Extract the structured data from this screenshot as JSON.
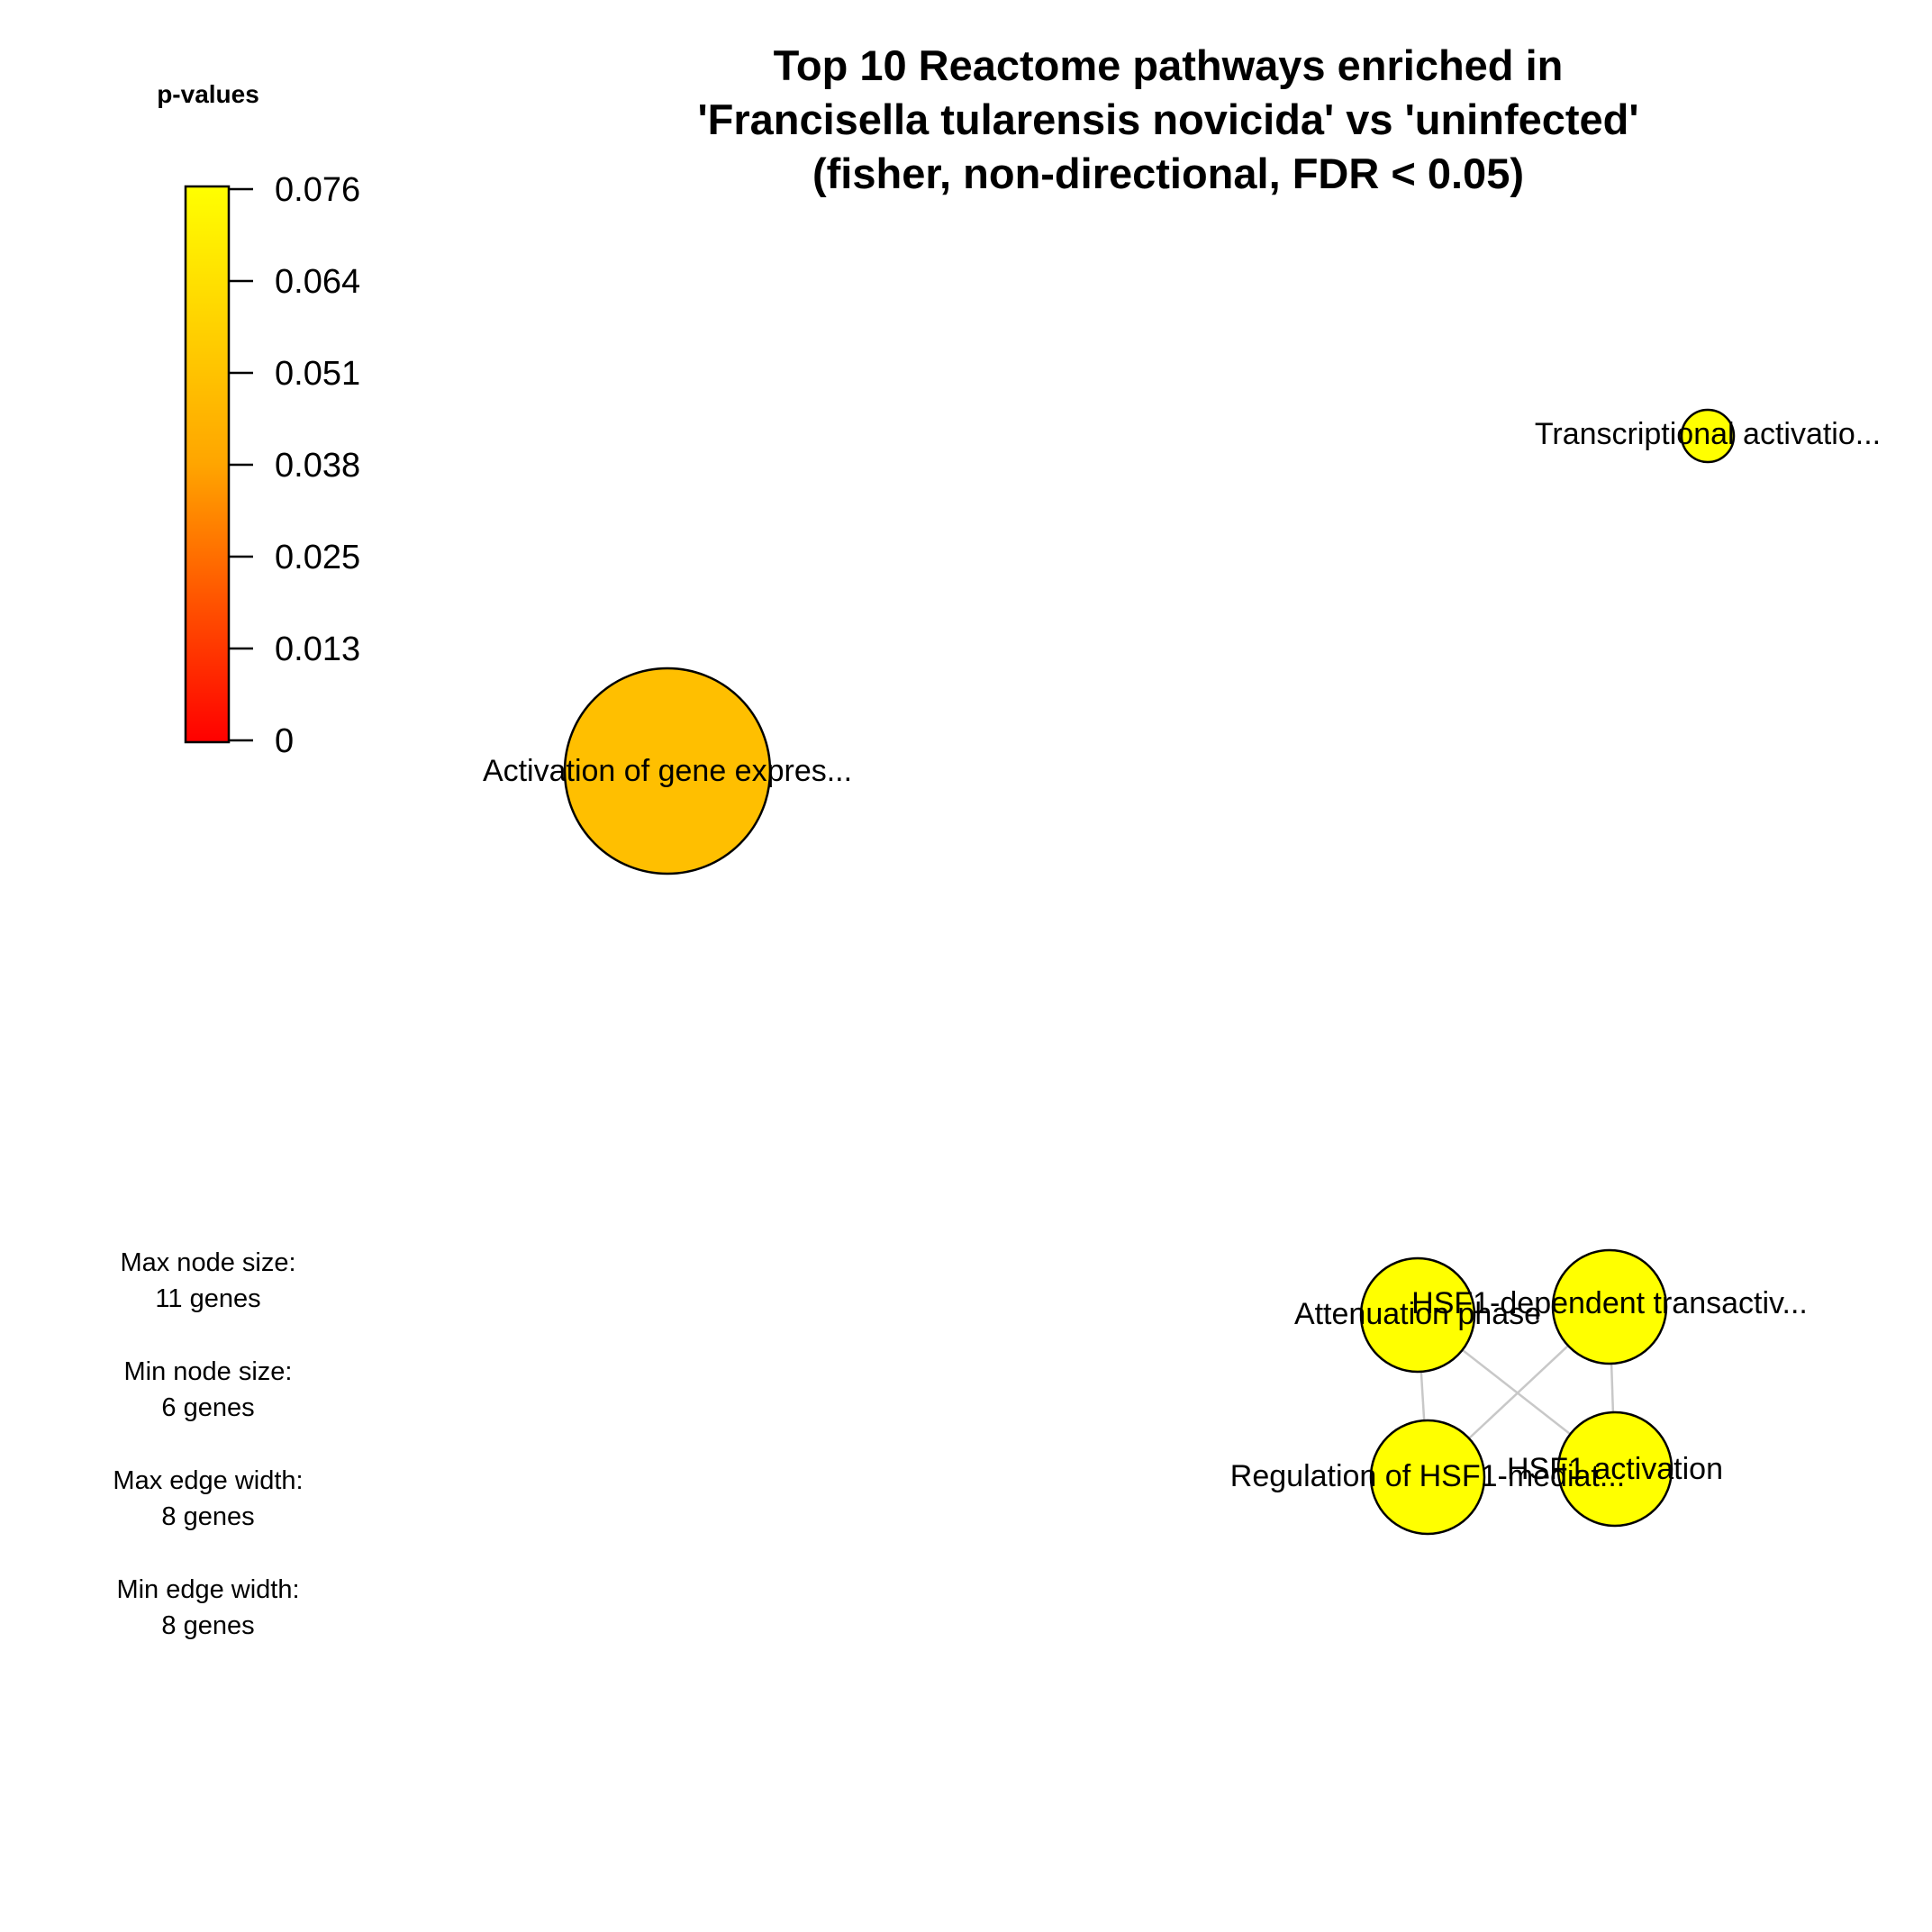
{
  "title": {
    "line1": "Top 10 Reactome pathways enriched in",
    "line2": "'Francisella tularensis novicida' vs 'uninfected'",
    "line3": "(fisher, non-directional, FDR < 0.05)"
  },
  "legend": {
    "title": "p-values",
    "ticks": [
      "0.076",
      "0.064",
      "0.051",
      "0.038",
      "0.025",
      "0.013",
      "0"
    ],
    "color_top": "#ffff00",
    "color_mid": "#ffa500",
    "color_bottom": "#ff0000"
  },
  "nodes": [
    {
      "id": "activation",
      "label": "Activation of gene expres...",
      "color": "#ffbf00"
    },
    {
      "id": "transcriptional",
      "label": "Transcriptional activatio...",
      "color": "#ffff00"
    },
    {
      "id": "attenuation",
      "label": "Attenuation phase",
      "color": "#ffff00"
    },
    {
      "id": "hsf1_dependent",
      "label": "HSF1-dependent transactiv...",
      "color": "#ffff00"
    },
    {
      "id": "regulation",
      "label": "Regulation of HSF1-mediat...",
      "color": "#ffff00"
    },
    {
      "id": "hsf1_activation",
      "label": "HSF1 activation",
      "color": "#ffff00"
    }
  ],
  "edges": [
    {
      "from": "attenuation",
      "to": "regulation"
    },
    {
      "from": "attenuation",
      "to": "hsf1_activation"
    },
    {
      "from": "hsf1_dependent",
      "to": "regulation"
    },
    {
      "from": "hsf1_dependent",
      "to": "hsf1_activation"
    }
  ],
  "edge_color": "#c8c8c8",
  "info": {
    "max_node_label": "Max node size:",
    "max_node_value": "11 genes",
    "min_node_label": "Min node size:",
    "min_node_value": "6 genes",
    "max_edge_label": "Max edge width:",
    "max_edge_value": "8 genes",
    "min_edge_label": "Min edge width:",
    "min_edge_value": "8 genes"
  }
}
